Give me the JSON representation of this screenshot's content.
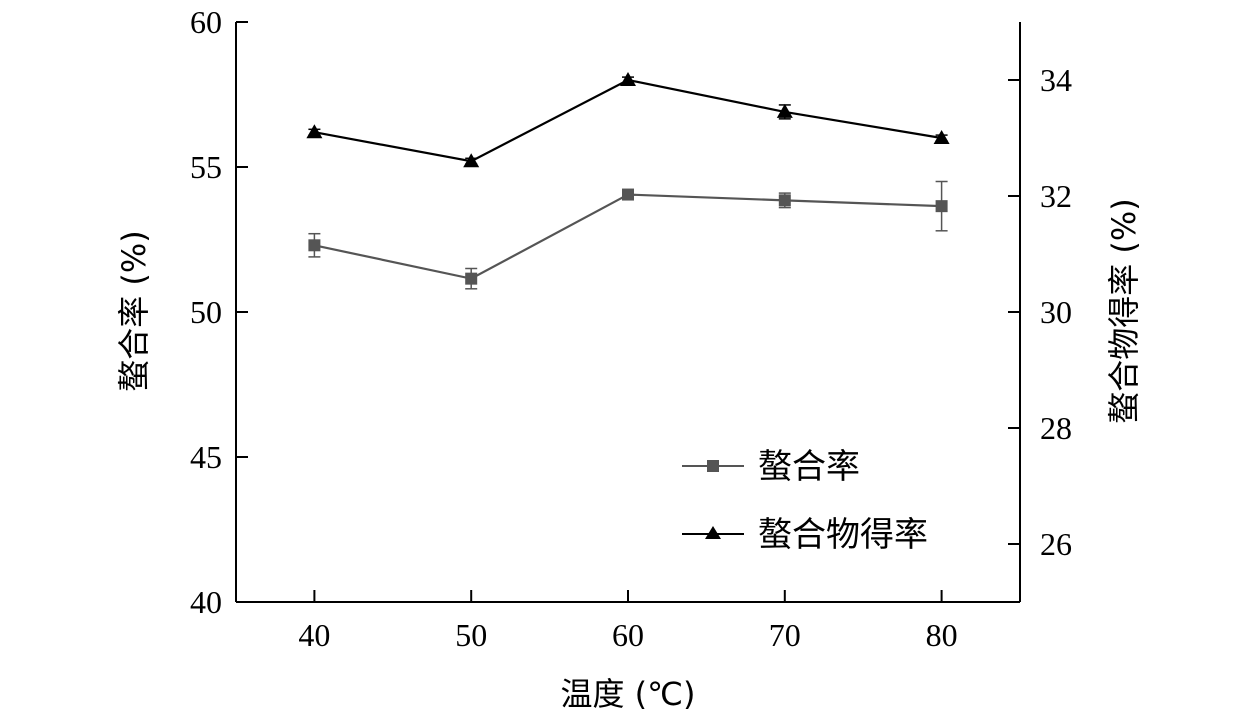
{
  "chart_data": {
    "type": "line",
    "x": [
      40,
      50,
      60,
      70,
      80
    ],
    "xticks": [
      "40",
      "50",
      "60",
      "70",
      "80"
    ],
    "xlabel": "温度 (℃)",
    "xlim": [
      35,
      85
    ],
    "y_left": {
      "label": "螯合率 (%)",
      "ylim": [
        40,
        60
      ],
      "ticks": [
        "40",
        "45",
        "50",
        "55",
        "60"
      ]
    },
    "y_right": {
      "label": "螯合物得率 (%)",
      "ylim": [
        25,
        35
      ],
      "ticks": [
        "26",
        "28",
        "30",
        "32",
        "34"
      ]
    },
    "series": [
      {
        "name": "螯合率",
        "axis": "left",
        "marker": "square",
        "color": "#555555",
        "values": [
          52.3,
          51.15,
          54.05,
          53.85,
          53.65
        ],
        "errors": [
          0.4,
          0.35,
          0.15,
          0.25,
          0.85
        ]
      },
      {
        "name": "螯合物得率",
        "axis": "right",
        "marker": "triangle",
        "color": "#000000",
        "values": [
          33.1,
          32.6,
          34.0,
          33.45,
          33.0
        ],
        "errors": [
          0.05,
          0.05,
          0.05,
          0.12,
          0.05
        ]
      }
    ],
    "legend_position": "bottom-right",
    "grid": false
  }
}
